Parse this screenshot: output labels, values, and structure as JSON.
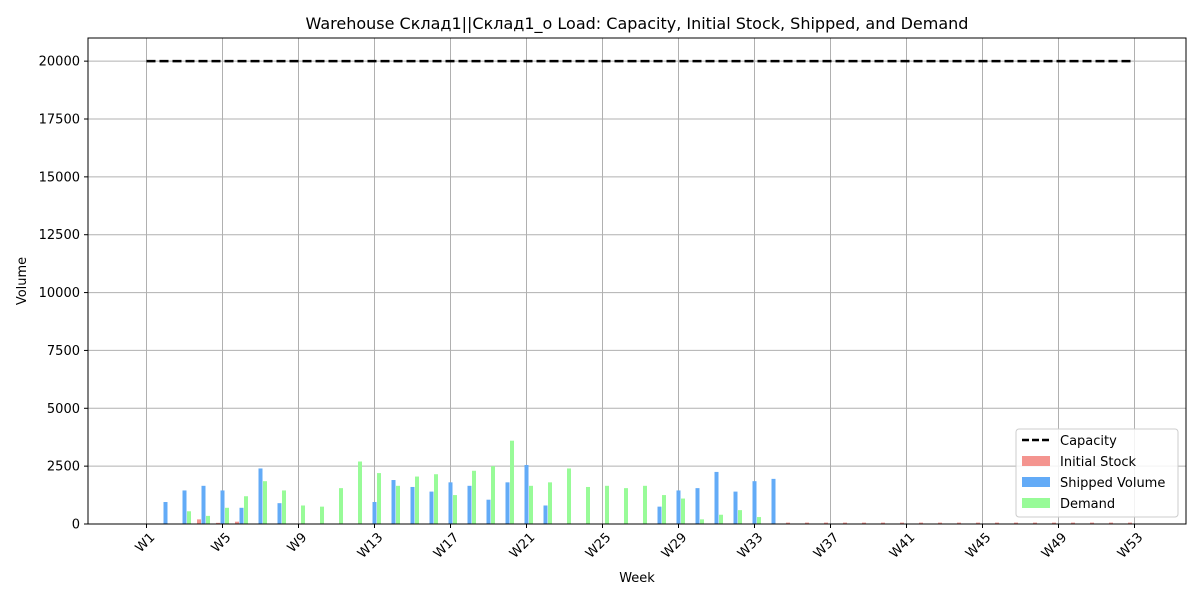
{
  "chart_data": {
    "type": "bar",
    "title": "Warehouse Склад1||Склад1_о Load: Capacity, Initial Stock, Shipped, and Demand",
    "xlabel": "Week",
    "ylabel": "Volume",
    "ylim": [
      0,
      21000
    ],
    "yticks": [
      0,
      2500,
      5000,
      7500,
      10000,
      12500,
      15000,
      17500,
      20000
    ],
    "ytick_labels": [
      "0",
      "2500",
      "5000",
      "7500",
      "10000",
      "12500",
      "15000",
      "17500",
      "20000"
    ],
    "categories": [
      "W1",
      "W2",
      "W3",
      "W4",
      "W5",
      "W6",
      "W7",
      "W8",
      "W9",
      "W10",
      "W11",
      "W12",
      "W13",
      "W14",
      "W15",
      "W16",
      "W17",
      "W18",
      "W19",
      "W20",
      "W21",
      "W22",
      "W23",
      "W24",
      "W25",
      "W26",
      "W27",
      "W28",
      "W29",
      "W30",
      "W31",
      "W32",
      "W33",
      "W34",
      "W35",
      "W36",
      "W37",
      "W38",
      "W39",
      "W40",
      "W41",
      "W42",
      "W43",
      "W44",
      "W45",
      "W46",
      "W47",
      "W48",
      "W49",
      "W50",
      "W51",
      "W52",
      "W53"
    ],
    "xtick_labels": [
      "W1",
      "W5",
      "W9",
      "W13",
      "W17",
      "W21",
      "W25",
      "W29",
      "W33",
      "W37",
      "W41",
      "W45",
      "W49",
      "W53"
    ],
    "grid": true,
    "legend_position": "lower-right",
    "capacity": {
      "name": "Capacity",
      "value": 20000,
      "color": "#000000",
      "style": "dashed"
    },
    "series": [
      {
        "name": "Initial Stock",
        "color": "#f4948f",
        "values": [
          0,
          0,
          0,
          200,
          50,
          100,
          0,
          0,
          0,
          0,
          0,
          0,
          0,
          0,
          0,
          0,
          0,
          0,
          0,
          0,
          0,
          0,
          0,
          0,
          0,
          0,
          0,
          0,
          0,
          0,
          0,
          0,
          0,
          0,
          60,
          60,
          60,
          60,
          60,
          60,
          60,
          60,
          60,
          60,
          60,
          60,
          60,
          60,
          60,
          60,
          60,
          60,
          60
        ]
      },
      {
        "name": "Shipped Volume",
        "color": "#63abf7",
        "values": [
          0,
          950,
          1450,
          1650,
          1450,
          700,
          2400,
          900,
          0,
          0,
          0,
          0,
          950,
          1900,
          1600,
          1400,
          1800,
          1650,
          1050,
          1800,
          2550,
          800,
          0,
          0,
          0,
          0,
          0,
          750,
          1450,
          1550,
          2250,
          1400,
          1850,
          1950,
          0,
          0,
          0,
          0,
          0,
          0,
          0,
          0,
          0,
          0,
          0,
          0,
          0,
          0,
          0,
          0,
          0,
          0,
          0
        ]
      },
      {
        "name": "Demand",
        "color": "#98fb98",
        "values": [
          0,
          0,
          550,
          350,
          700,
          1200,
          1850,
          1450,
          800,
          750,
          1550,
          2700,
          2200,
          1650,
          2050,
          2150,
          1250,
          2300,
          2500,
          3600,
          1650,
          1800,
          2400,
          1600,
          1650,
          1550,
          1650,
          1250,
          1100,
          200,
          400,
          600,
          300,
          0,
          0,
          0,
          0,
          0,
          0,
          0,
          0,
          0,
          0,
          0,
          0,
          0,
          0,
          0,
          0,
          0,
          0,
          0,
          0
        ]
      }
    ]
  }
}
